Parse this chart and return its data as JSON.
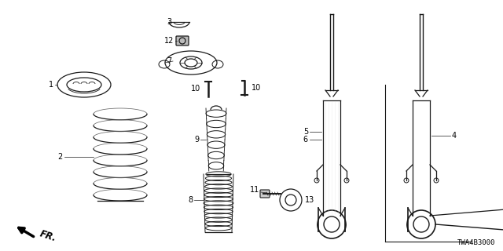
{
  "bg_color": "#ffffff",
  "line_color": "#1a1a1a",
  "text_color": "#000000",
  "diagram_code": "TWA4B3000",
  "fr_label": "FR.",
  "figsize": [
    6.4,
    3.2
  ],
  "dpi": 100
}
